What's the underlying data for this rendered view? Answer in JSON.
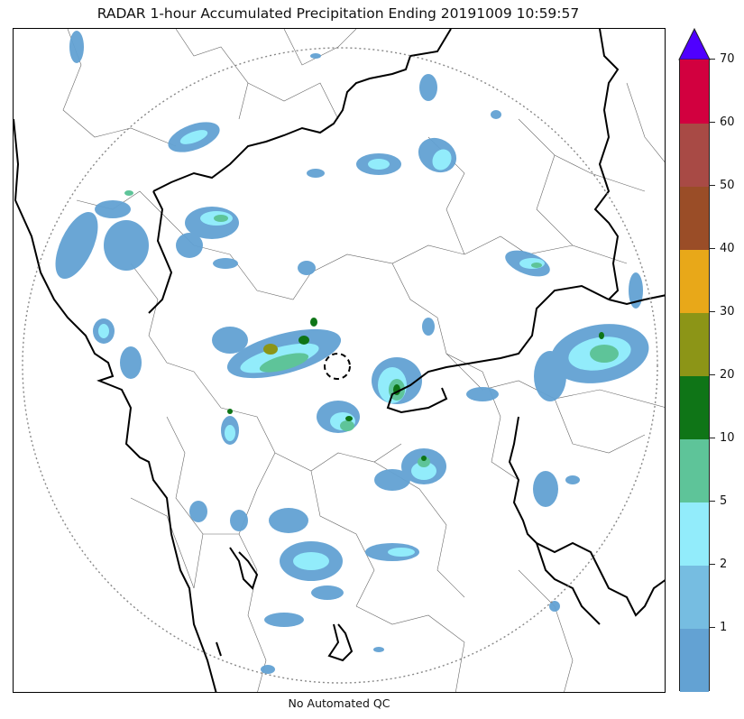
{
  "title": "RADAR 1-hour Accumulated Precipitation Ending 20191009 10:59:57",
  "footnote": "No Automated QC",
  "map": {
    "coverage_ring_style": "dotted-gray",
    "radar_site_marker": "dashed-circle",
    "state_boundary_color": "#000000",
    "district_boundary_color": "#555555"
  },
  "colorbar": {
    "extend": "max",
    "extend_color": "#4f00ff",
    "bins": [
      {
        "label": "",
        "color": "#63a2d3"
      },
      {
        "label": "1",
        "color": "#76bde1"
      },
      {
        "label": "2",
        "color": "#92ecfb"
      },
      {
        "label": "5",
        "color": "#5ec499"
      },
      {
        "label": "10",
        "color": "#0f7517"
      },
      {
        "label": "20",
        "color": "#8c9517"
      },
      {
        "label": "30",
        "color": "#e8a819"
      },
      {
        "label": "40",
        "color": "#9a4d27"
      },
      {
        "label": "50",
        "color": "#a84a45"
      },
      {
        "label": "60",
        "color": "#d2003f"
      },
      {
        "label": "70",
        "color": ""
      }
    ]
  }
}
